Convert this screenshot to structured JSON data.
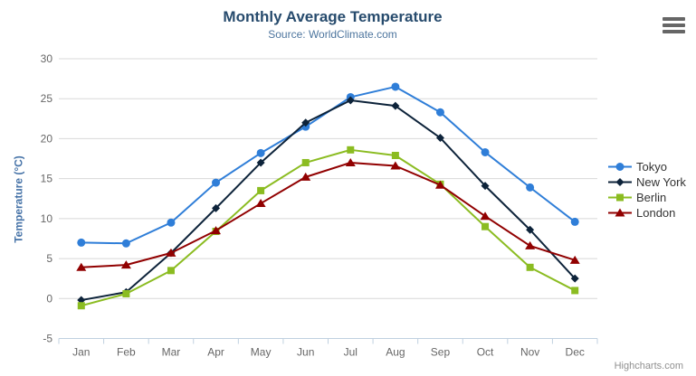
{
  "chart_data": {
    "type": "line",
    "title": "Monthly Average Temperature",
    "subtitle": "Source: WorldClimate.com",
    "categories": [
      "Jan",
      "Feb",
      "Mar",
      "Apr",
      "May",
      "Jun",
      "Jul",
      "Aug",
      "Sep",
      "Oct",
      "Nov",
      "Dec"
    ],
    "xlabel": "",
    "ylabel": "Temperature (°C)",
    "ylim": [
      -5,
      30
    ],
    "ytick_step": 5,
    "grid": true,
    "legend_position": "right",
    "series": [
      {
        "name": "Tokyo",
        "color": "#2f7ed8",
        "marker": "circle",
        "values": [
          7.0,
          6.9,
          9.5,
          14.5,
          18.2,
          21.5,
          25.2,
          26.5,
          23.3,
          18.3,
          13.9,
          9.6
        ]
      },
      {
        "name": "New York",
        "color": "#0d233a",
        "marker": "diamond",
        "values": [
          -0.2,
          0.8,
          5.7,
          11.3,
          17.0,
          22.0,
          24.8,
          24.1,
          20.1,
          14.1,
          8.6,
          2.5
        ]
      },
      {
        "name": "Berlin",
        "color": "#8bbc21",
        "marker": "square",
        "values": [
          -0.9,
          0.6,
          3.5,
          8.4,
          13.5,
          17.0,
          18.6,
          17.9,
          14.3,
          9.0,
          3.9,
          1.0
        ]
      },
      {
        "name": "London",
        "color": "#910000",
        "marker": "triangle-up",
        "values": [
          3.9,
          4.2,
          5.7,
          8.5,
          11.9,
          15.2,
          17.0,
          16.6,
          14.2,
          10.3,
          6.6,
          4.8
        ]
      }
    ]
  },
  "credits": {
    "label": "Highcharts.com"
  },
  "icons": {
    "export_menu": "hamburger-icon"
  },
  "colors": {
    "title": "#274b6d",
    "subtitle": "#4d759e",
    "axis_labels": "#666666",
    "axis_title": "#4572a7",
    "grid_line": "#d8d8d8",
    "axis_line": "#c0d0e0",
    "legend_text": "#333333",
    "background": "#ffffff"
  }
}
